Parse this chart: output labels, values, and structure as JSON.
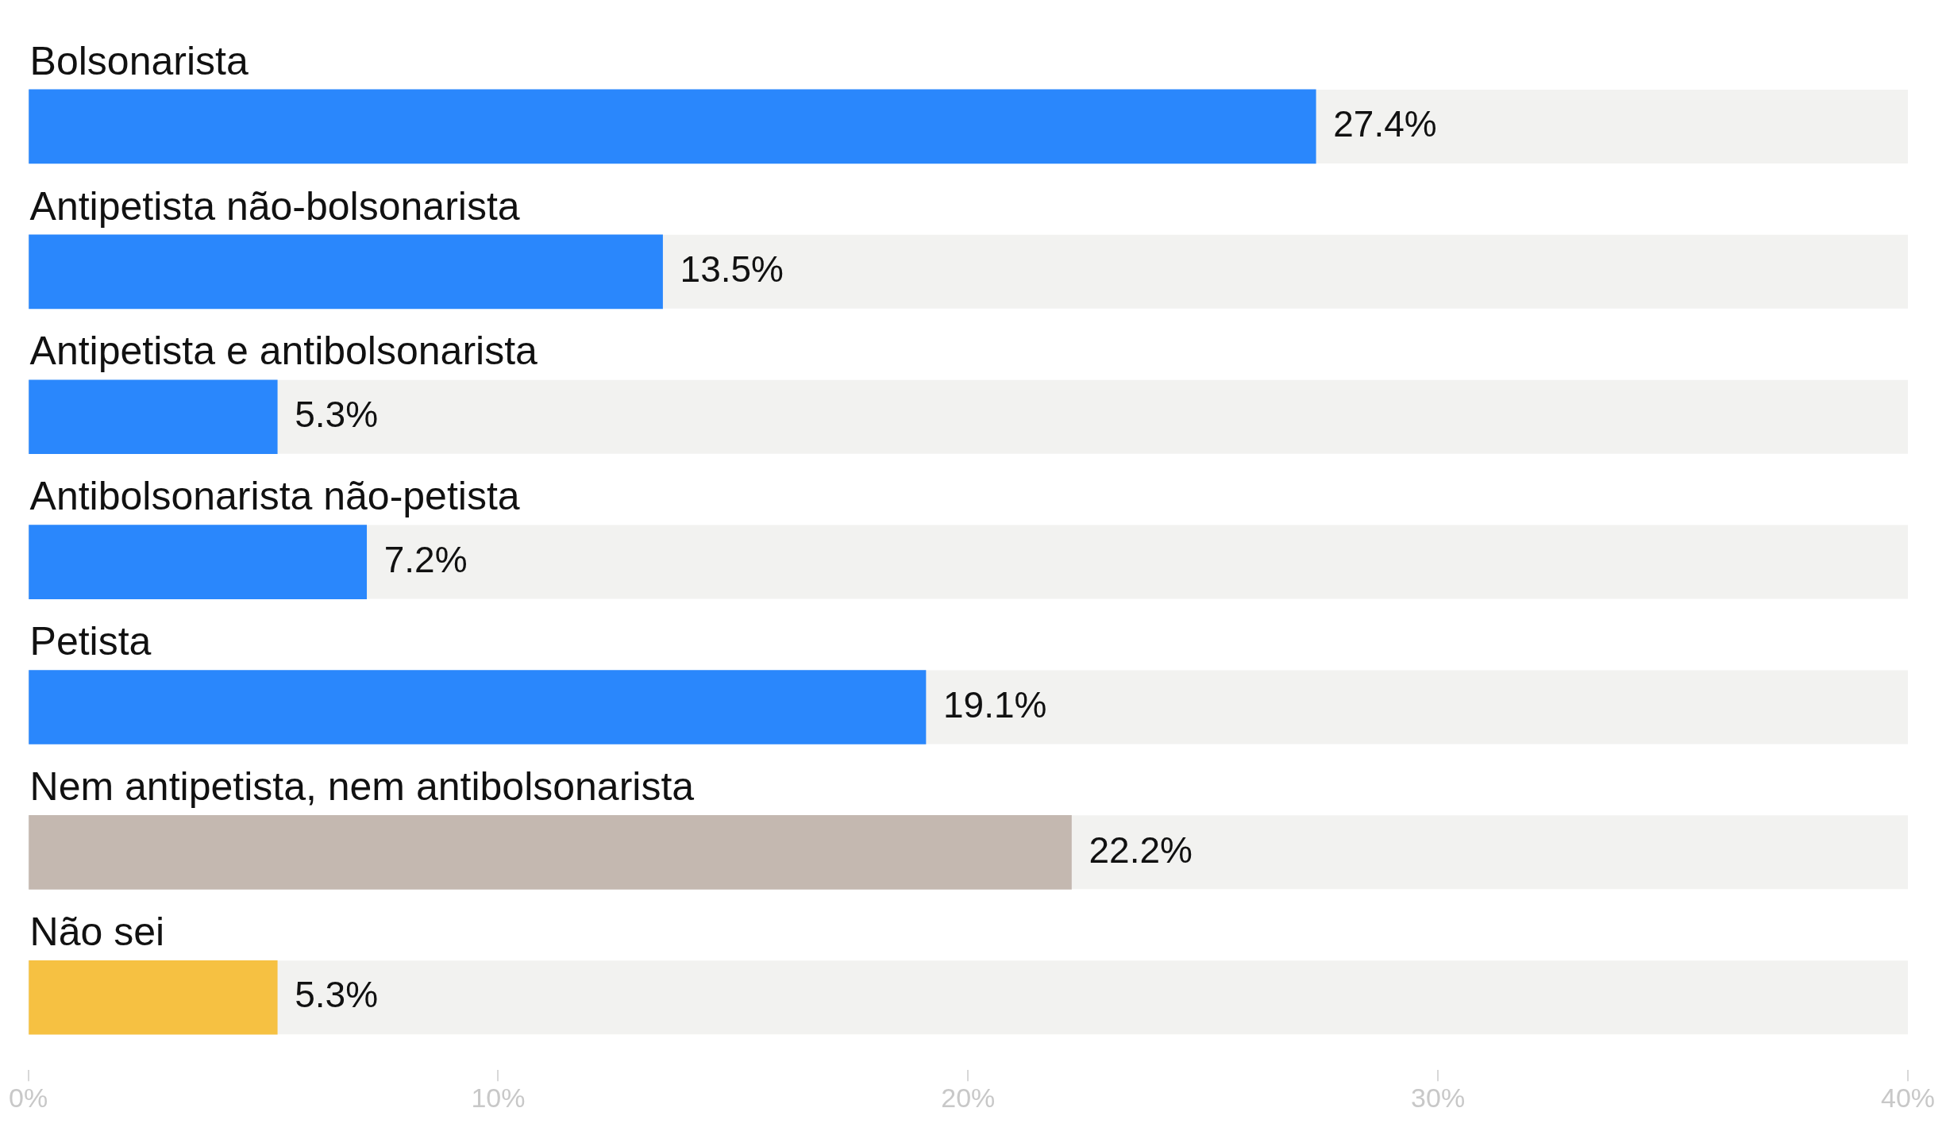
{
  "chart_data": {
    "type": "bar",
    "orientation": "horizontal",
    "categories": [
      "Bolsonarista",
      "Antipetista não-bolsonarista",
      "Antipetista e antibolsonarista",
      "Antibolsonarista não-petista",
      "Petista",
      "Nem antipetista, nem antibolsonarista",
      "Não sei"
    ],
    "values": [
      27.4,
      13.5,
      5.3,
      7.2,
      19.1,
      22.2,
      5.3
    ],
    "colors": [
      "#2a87fc",
      "#2a87fc",
      "#2a87fc",
      "#2a87fc",
      "#2a87fc",
      "#c4b8b0",
      "#f6c142"
    ],
    "value_labels": [
      "27.4%",
      "13.5%",
      "5.3%",
      "7.2%",
      "19.1%",
      "22.2%",
      "5.3%"
    ],
    "xlim": [
      0,
      40
    ],
    "xticks": [
      {
        "value": 0,
        "label": "0%"
      },
      {
        "value": 10,
        "label": "10%"
      },
      {
        "value": 20,
        "label": "20%"
      },
      {
        "value": 30,
        "label": "30%"
      },
      {
        "value": 40,
        "label": "40%"
      }
    ],
    "grid": false,
    "legend": false
  }
}
